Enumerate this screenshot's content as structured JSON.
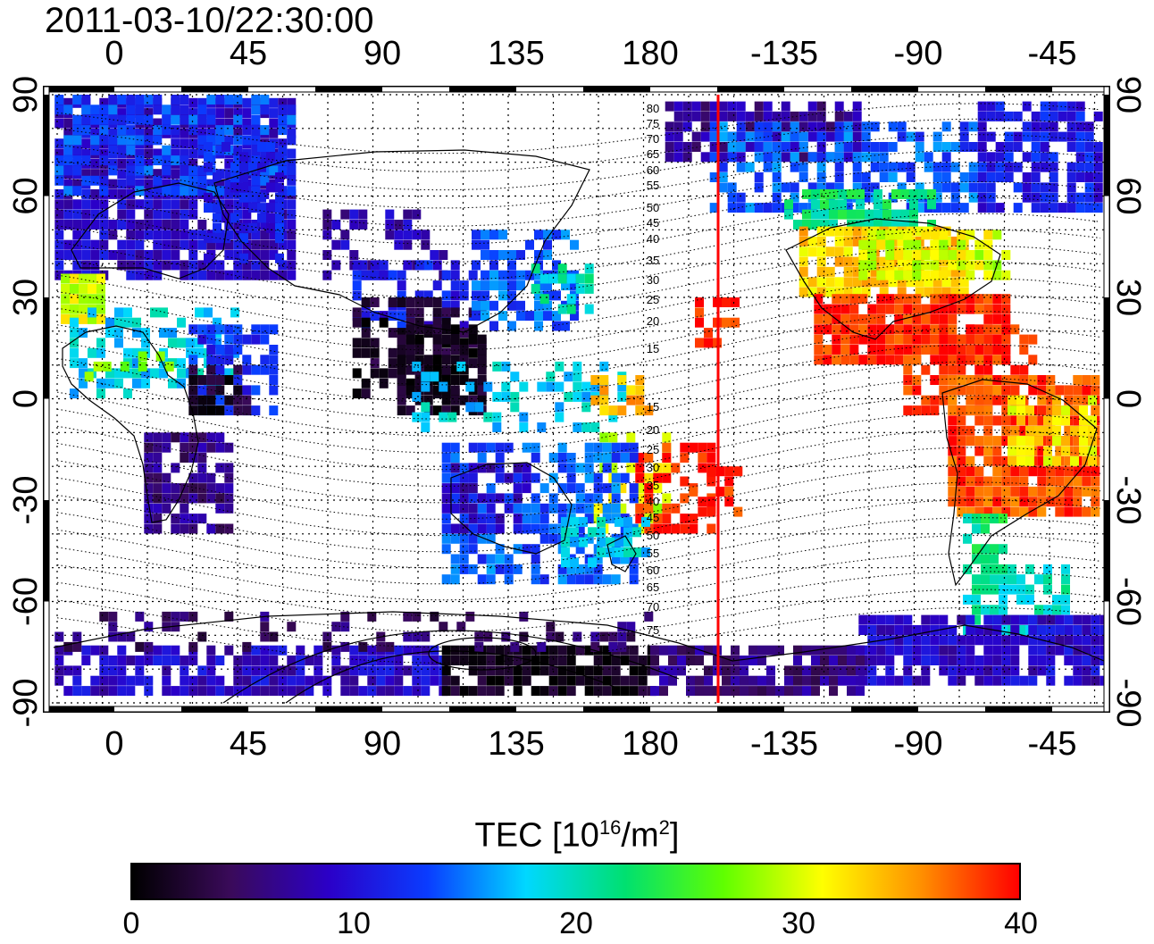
{
  "timestamp": "2011-03-10/22:30:00",
  "longitude_tick_labels": [
    "0",
    "45",
    "90",
    "135",
    "180",
    "-135",
    "-90",
    "-45"
  ],
  "latitude_tick_labels_left": [
    "90",
    "60",
    "30",
    "0",
    "-30",
    "-60",
    "-90"
  ],
  "latitude_tick_labels_right": [
    "90",
    "60",
    "30",
    "0",
    "-30",
    "-60",
    "-90"
  ],
  "magnetic_latitude_labels": [
    "80",
    "75",
    "70",
    "65",
    "60",
    "55",
    "50",
    "45",
    "40",
    "35",
    "30",
    "25",
    "20",
    "15",
    "15",
    "20",
    "25",
    "30",
    "35",
    "40",
    "45",
    "50",
    "55",
    "60",
    "65",
    "70",
    "75"
  ],
  "colorbar": {
    "title_prefix": "TEC  [10",
    "title_exp": "16",
    "title_mid": "/m",
    "title_exp2": "2",
    "title_suffix": "]",
    "labels": [
      "0",
      "10",
      "20",
      "30",
      "40"
    ],
    "range": [
      0,
      40
    ],
    "colors": [
      "#000000",
      "#3a0a5a",
      "#2b00c8",
      "#0a3cff",
      "#00d8ff",
      "#00e070",
      "#60ff00",
      "#ffff00",
      "#ff9000",
      "#ff0000"
    ]
  },
  "terminator_color": "#ff0000"
}
